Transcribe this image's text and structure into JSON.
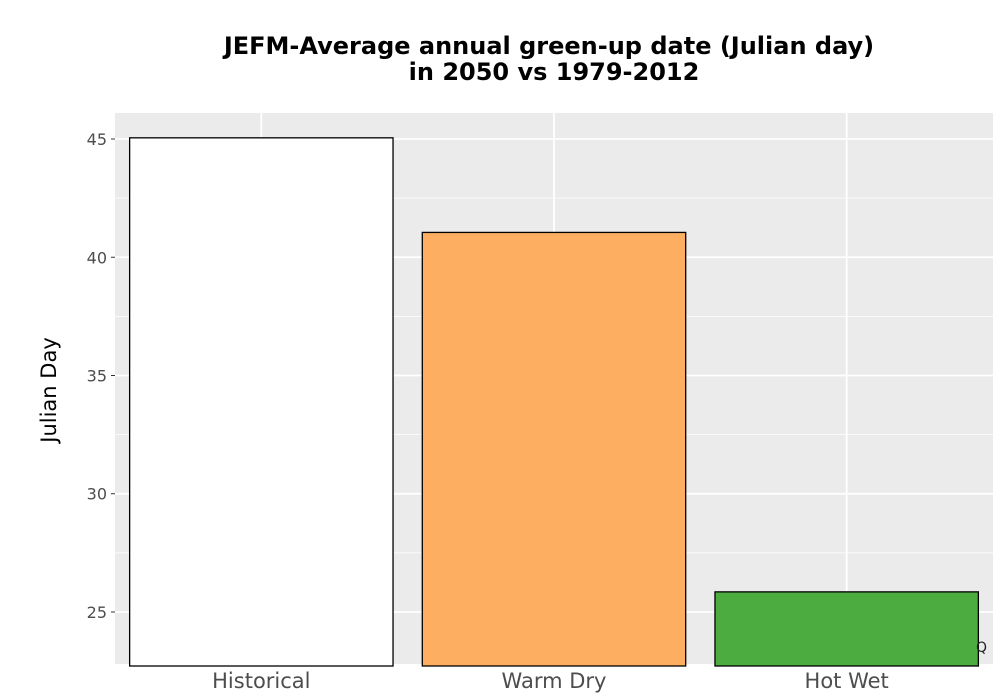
{
  "chart_data": {
    "type": "bar",
    "title_lines": [
      "JEFM-Average annual green-up date (Julian day)",
      "in 2050 vs 1979-2012"
    ],
    "xlabel": "",
    "ylabel": "Julian Day",
    "categories": [
      "Historical",
      "Warm Dry",
      "Hot Wet"
    ],
    "values": [
      45.05,
      41.05,
      25.85
    ],
    "colors": [
      "#ffffff",
      "#fdae61",
      "#4dac3f"
    ],
    "ylim": [
      22.8,
      46.1
    ],
    "yticks": [
      25,
      30,
      35,
      40,
      45
    ],
    "ytick_labels": [
      "25",
      "30",
      "35",
      "40",
      "45"
    ],
    "grid": true,
    "panel_background": "#ebebeb"
  },
  "corner_button_label": "Q"
}
